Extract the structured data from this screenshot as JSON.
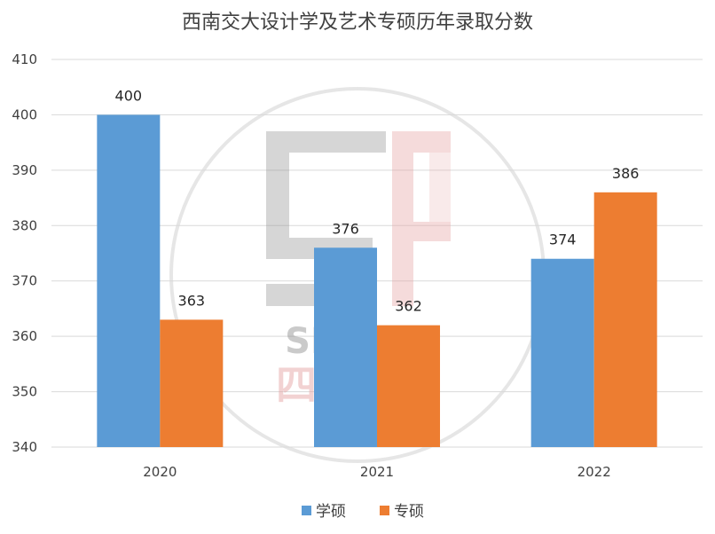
{
  "chart_data": {
    "type": "bar",
    "title": "西南交大设计学及艺术专硕历年录取分数",
    "categories": [
      "2020",
      "2021",
      "2022"
    ],
    "series": [
      {
        "name": "学硕",
        "values": [
          400,
          376,
          374
        ],
        "color": "#5B9BD5"
      },
      {
        "name": "专硕",
        "values": [
          363,
          362,
          386
        ],
        "color": "#ED7D31"
      }
    ],
    "ylim": [
      340,
      410
    ],
    "yticks": [
      340,
      350,
      360,
      370,
      380,
      390,
      400,
      410
    ],
    "grid": true,
    "legend": "bottom"
  },
  "watermark": {
    "brand_text": "SIFANG",
    "brand_cn": "四方手绘",
    "colors": {
      "ring": "#d9d9d9",
      "gray": "#8c8c8c",
      "red": "#e6a4a4"
    }
  }
}
